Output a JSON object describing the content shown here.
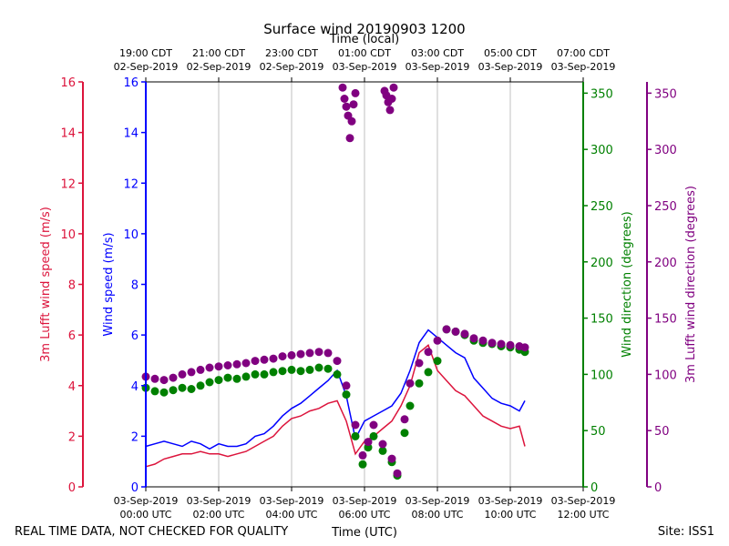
{
  "chart_data": {
    "type": "scatter",
    "title": "Surface wind 20190903 1200",
    "top_axis_label": "Time (local)",
    "xlabel": "Time (UTC)",
    "footer_left": "REAL TIME DATA, NOT CHECKED FOR QUALITY",
    "footer_right": "Site: ISS1",
    "x_range_hours": [
      0,
      12
    ],
    "bottom_ticks": [
      {
        "h": 0,
        "l1": "03-Sep-2019",
        "l2": "00:00 UTC"
      },
      {
        "h": 2,
        "l1": "03-Sep-2019",
        "l2": "02:00 UTC"
      },
      {
        "h": 4,
        "l1": "03-Sep-2019",
        "l2": "04:00 UTC"
      },
      {
        "h": 6,
        "l1": "03-Sep-2019",
        "l2": "06:00 UTC"
      },
      {
        "h": 8,
        "l1": "03-Sep-2019",
        "l2": "08:00 UTC"
      },
      {
        "h": 10,
        "l1": "03-Sep-2019",
        "l2": "10:00 UTC"
      },
      {
        "h": 12,
        "l1": "03-Sep-2019",
        "l2": "12:00 UTC"
      }
    ],
    "top_ticks": [
      {
        "h": 0,
        "l1": "19:00 CDT",
        "l2": "02-Sep-2019"
      },
      {
        "h": 2,
        "l1": "21:00 CDT",
        "l2": "02-Sep-2019"
      },
      {
        "h": 4,
        "l1": "23:00 CDT",
        "l2": "02-Sep-2019"
      },
      {
        "h": 6,
        "l1": "01:00 CDT",
        "l2": "03-Sep-2019"
      },
      {
        "h": 8,
        "l1": "03:00 CDT",
        "l2": "03-Sep-2019"
      },
      {
        "h": 10,
        "l1": "05:00 CDT",
        "l2": "03-Sep-2019"
      },
      {
        "h": 12,
        "l1": "07:00 CDT",
        "l2": "03-Sep-2019"
      }
    ],
    "axes": {
      "lufft_speed": {
        "label": "3m Lufft wind speed (m/s)",
        "color": "#dc143c",
        "range": [
          0,
          16
        ],
        "ticks": [
          0,
          2,
          4,
          6,
          8,
          10,
          12,
          14,
          16
        ]
      },
      "wind_speed": {
        "label": "Wind speed (m/s)",
        "color": "#0000ff",
        "range": [
          0,
          16
        ],
        "ticks": [
          0,
          2,
          4,
          6,
          8,
          10,
          12,
          14,
          16
        ]
      },
      "wind_dir": {
        "label": "Wind direction (degrees)",
        "color": "#008000",
        "range": [
          0,
          360
        ],
        "ticks": [
          0,
          50,
          100,
          150,
          200,
          250,
          300,
          350
        ]
      },
      "lufft_dir": {
        "label": "3m Lufft wind direction (degrees)",
        "color": "#800080",
        "range": [
          0,
          360
        ],
        "ticks": [
          0,
          50,
          100,
          150,
          200,
          250,
          300,
          350
        ]
      }
    },
    "series": [
      {
        "name": "Wind speed",
        "axis": "wind_speed",
        "style": "line",
        "x": [
          0,
          0.25,
          0.5,
          0.75,
          1,
          1.25,
          1.5,
          1.75,
          2,
          2.25,
          2.5,
          2.75,
          3,
          3.25,
          3.5,
          3.75,
          4,
          4.25,
          4.5,
          4.75,
          5,
          5.25,
          5.5,
          5.75,
          6,
          6.25,
          6.5,
          6.75,
          7,
          7.25,
          7.5,
          7.75,
          8,
          8.25,
          8.5,
          8.75,
          9,
          9.25,
          9.5,
          9.75,
          10,
          10.25,
          10.4
        ],
        "values": [
          1.6,
          1.7,
          1.8,
          1.7,
          1.6,
          1.8,
          1.7,
          1.5,
          1.7,
          1.6,
          1.6,
          1.7,
          2.0,
          2.1,
          2.4,
          2.8,
          3.1,
          3.3,
          3.6,
          3.9,
          4.2,
          4.6,
          3.6,
          1.9,
          2.6,
          2.8,
          3.0,
          3.2,
          3.7,
          4.6,
          5.7,
          6.2,
          5.9,
          5.6,
          5.3,
          5.1,
          4.3,
          3.9,
          3.5,
          3.3,
          3.2,
          3.0,
          3.4
        ]
      },
      {
        "name": "3m Lufft wind speed",
        "axis": "lufft_speed",
        "style": "line",
        "x": [
          0,
          0.25,
          0.5,
          0.75,
          1,
          1.25,
          1.5,
          1.75,
          2,
          2.25,
          2.5,
          2.75,
          3,
          3.25,
          3.5,
          3.75,
          4,
          4.25,
          4.5,
          4.75,
          5,
          5.25,
          5.5,
          5.75,
          6,
          6.25,
          6.5,
          6.75,
          7,
          7.25,
          7.5,
          7.75,
          8,
          8.25,
          8.5,
          8.75,
          9,
          9.25,
          9.5,
          9.75,
          10,
          10.25,
          10.4
        ],
        "values": [
          0.8,
          0.9,
          1.1,
          1.2,
          1.3,
          1.3,
          1.4,
          1.3,
          1.3,
          1.2,
          1.3,
          1.4,
          1.6,
          1.8,
          2.0,
          2.4,
          2.7,
          2.8,
          3.0,
          3.1,
          3.3,
          3.4,
          2.6,
          1.3,
          1.8,
          2.0,
          2.3,
          2.6,
          3.2,
          4.0,
          5.3,
          5.6,
          4.6,
          4.2,
          3.8,
          3.6,
          3.2,
          2.8,
          2.6,
          2.4,
          2.3,
          2.4,
          1.6
        ]
      },
      {
        "name": "Wind direction",
        "axis": "wind_dir",
        "style": "dots",
        "x": [
          0,
          0.25,
          0.5,
          0.75,
          1,
          1.25,
          1.5,
          1.75,
          2,
          2.25,
          2.5,
          2.75,
          3,
          3.25,
          3.5,
          3.75,
          4,
          4.25,
          4.5,
          4.75,
          5,
          5.25,
          5.5,
          5.75,
          5.95,
          6.1,
          6.25,
          6.5,
          6.75,
          6.9,
          7.1,
          7.25,
          7.5,
          7.75,
          8,
          8.25,
          8.5,
          8.75,
          9,
          9.25,
          9.5,
          9.75,
          10,
          10.25,
          10.4
        ],
        "values": [
          88,
          85,
          84,
          86,
          88,
          87,
          90,
          93,
          95,
          97,
          96,
          98,
          100,
          100,
          102,
          103,
          104,
          103,
          104,
          106,
          105,
          100,
          82,
          45,
          20,
          35,
          45,
          32,
          22,
          10,
          48,
          72,
          92,
          102,
          112,
          140,
          138,
          135,
          130,
          128,
          127,
          125,
          124,
          122,
          120
        ]
      },
      {
        "name": "3m Lufft wind direction",
        "axis": "lufft_dir",
        "style": "dots",
        "x": [
          0,
          0.25,
          0.5,
          0.75,
          1,
          1.25,
          1.5,
          1.75,
          2,
          2.25,
          2.5,
          2.75,
          3,
          3.25,
          3.5,
          3.75,
          4,
          4.25,
          4.5,
          4.75,
          5,
          5.25,
          5.5,
          5.75,
          5.95,
          6.1,
          6.25,
          6.5,
          6.75,
          6.9,
          7.1,
          7.25,
          7.5,
          7.75,
          8,
          8.25,
          8.5,
          8.75,
          9,
          9.25,
          9.5,
          9.75,
          10,
          10.25,
          10.4
        ],
        "values": [
          98,
          96,
          95,
          97,
          100,
          102,
          104,
          106,
          107,
          108,
          109,
          110,
          112,
          113,
          114,
          116,
          117,
          118,
          119,
          120,
          119,
          112,
          90,
          55,
          28,
          40,
          55,
          38,
          25,
          12,
          60,
          92,
          110,
          120,
          130,
          140,
          138,
          136,
          132,
          130,
          128,
          127,
          126,
          125,
          124
        ]
      },
      {
        "name": "3m Lufft wind direction (high)",
        "axis": "lufft_dir",
        "style": "dots",
        "x": [
          5.4,
          5.45,
          5.5,
          5.55,
          5.6,
          5.65,
          5.7,
          5.75,
          6.55,
          6.6,
          6.65,
          6.7,
          6.75,
          6.8
        ],
        "values": [
          355,
          345,
          338,
          330,
          310,
          325,
          340,
          350,
          352,
          348,
          342,
          335,
          345,
          355
        ]
      }
    ]
  }
}
